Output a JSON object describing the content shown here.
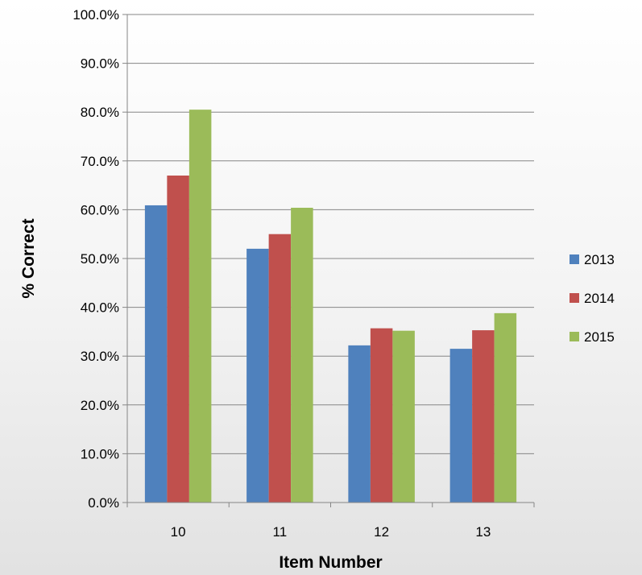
{
  "chart_data": {
    "type": "bar",
    "title": "",
    "xlabel": "Item Number",
    "ylabel": "% Correct",
    "categories": [
      "10",
      "11",
      "12",
      "13"
    ],
    "series": [
      {
        "name": "2013",
        "color": "#4f81bd",
        "values": [
          60.9,
          52.0,
          32.2,
          31.5
        ]
      },
      {
        "name": "2014",
        "color": "#c0504d",
        "values": [
          67.0,
          55.0,
          35.7,
          35.3
        ]
      },
      {
        "name": "2015",
        "color": "#9bbb59",
        "values": [
          80.5,
          60.4,
          35.2,
          38.8
        ]
      }
    ],
    "ylim": [
      0,
      100
    ],
    "yticks": [
      0,
      10,
      20,
      30,
      40,
      50,
      60,
      70,
      80,
      90,
      100
    ],
    "ytick_labels": [
      "0.0%",
      "10.0%",
      "20.0%",
      "30.0%",
      "40.0%",
      "50.0%",
      "60.0%",
      "70.0%",
      "80.0%",
      "90.0%",
      "100.0%"
    ],
    "grid": true,
    "legend_position": "right"
  }
}
